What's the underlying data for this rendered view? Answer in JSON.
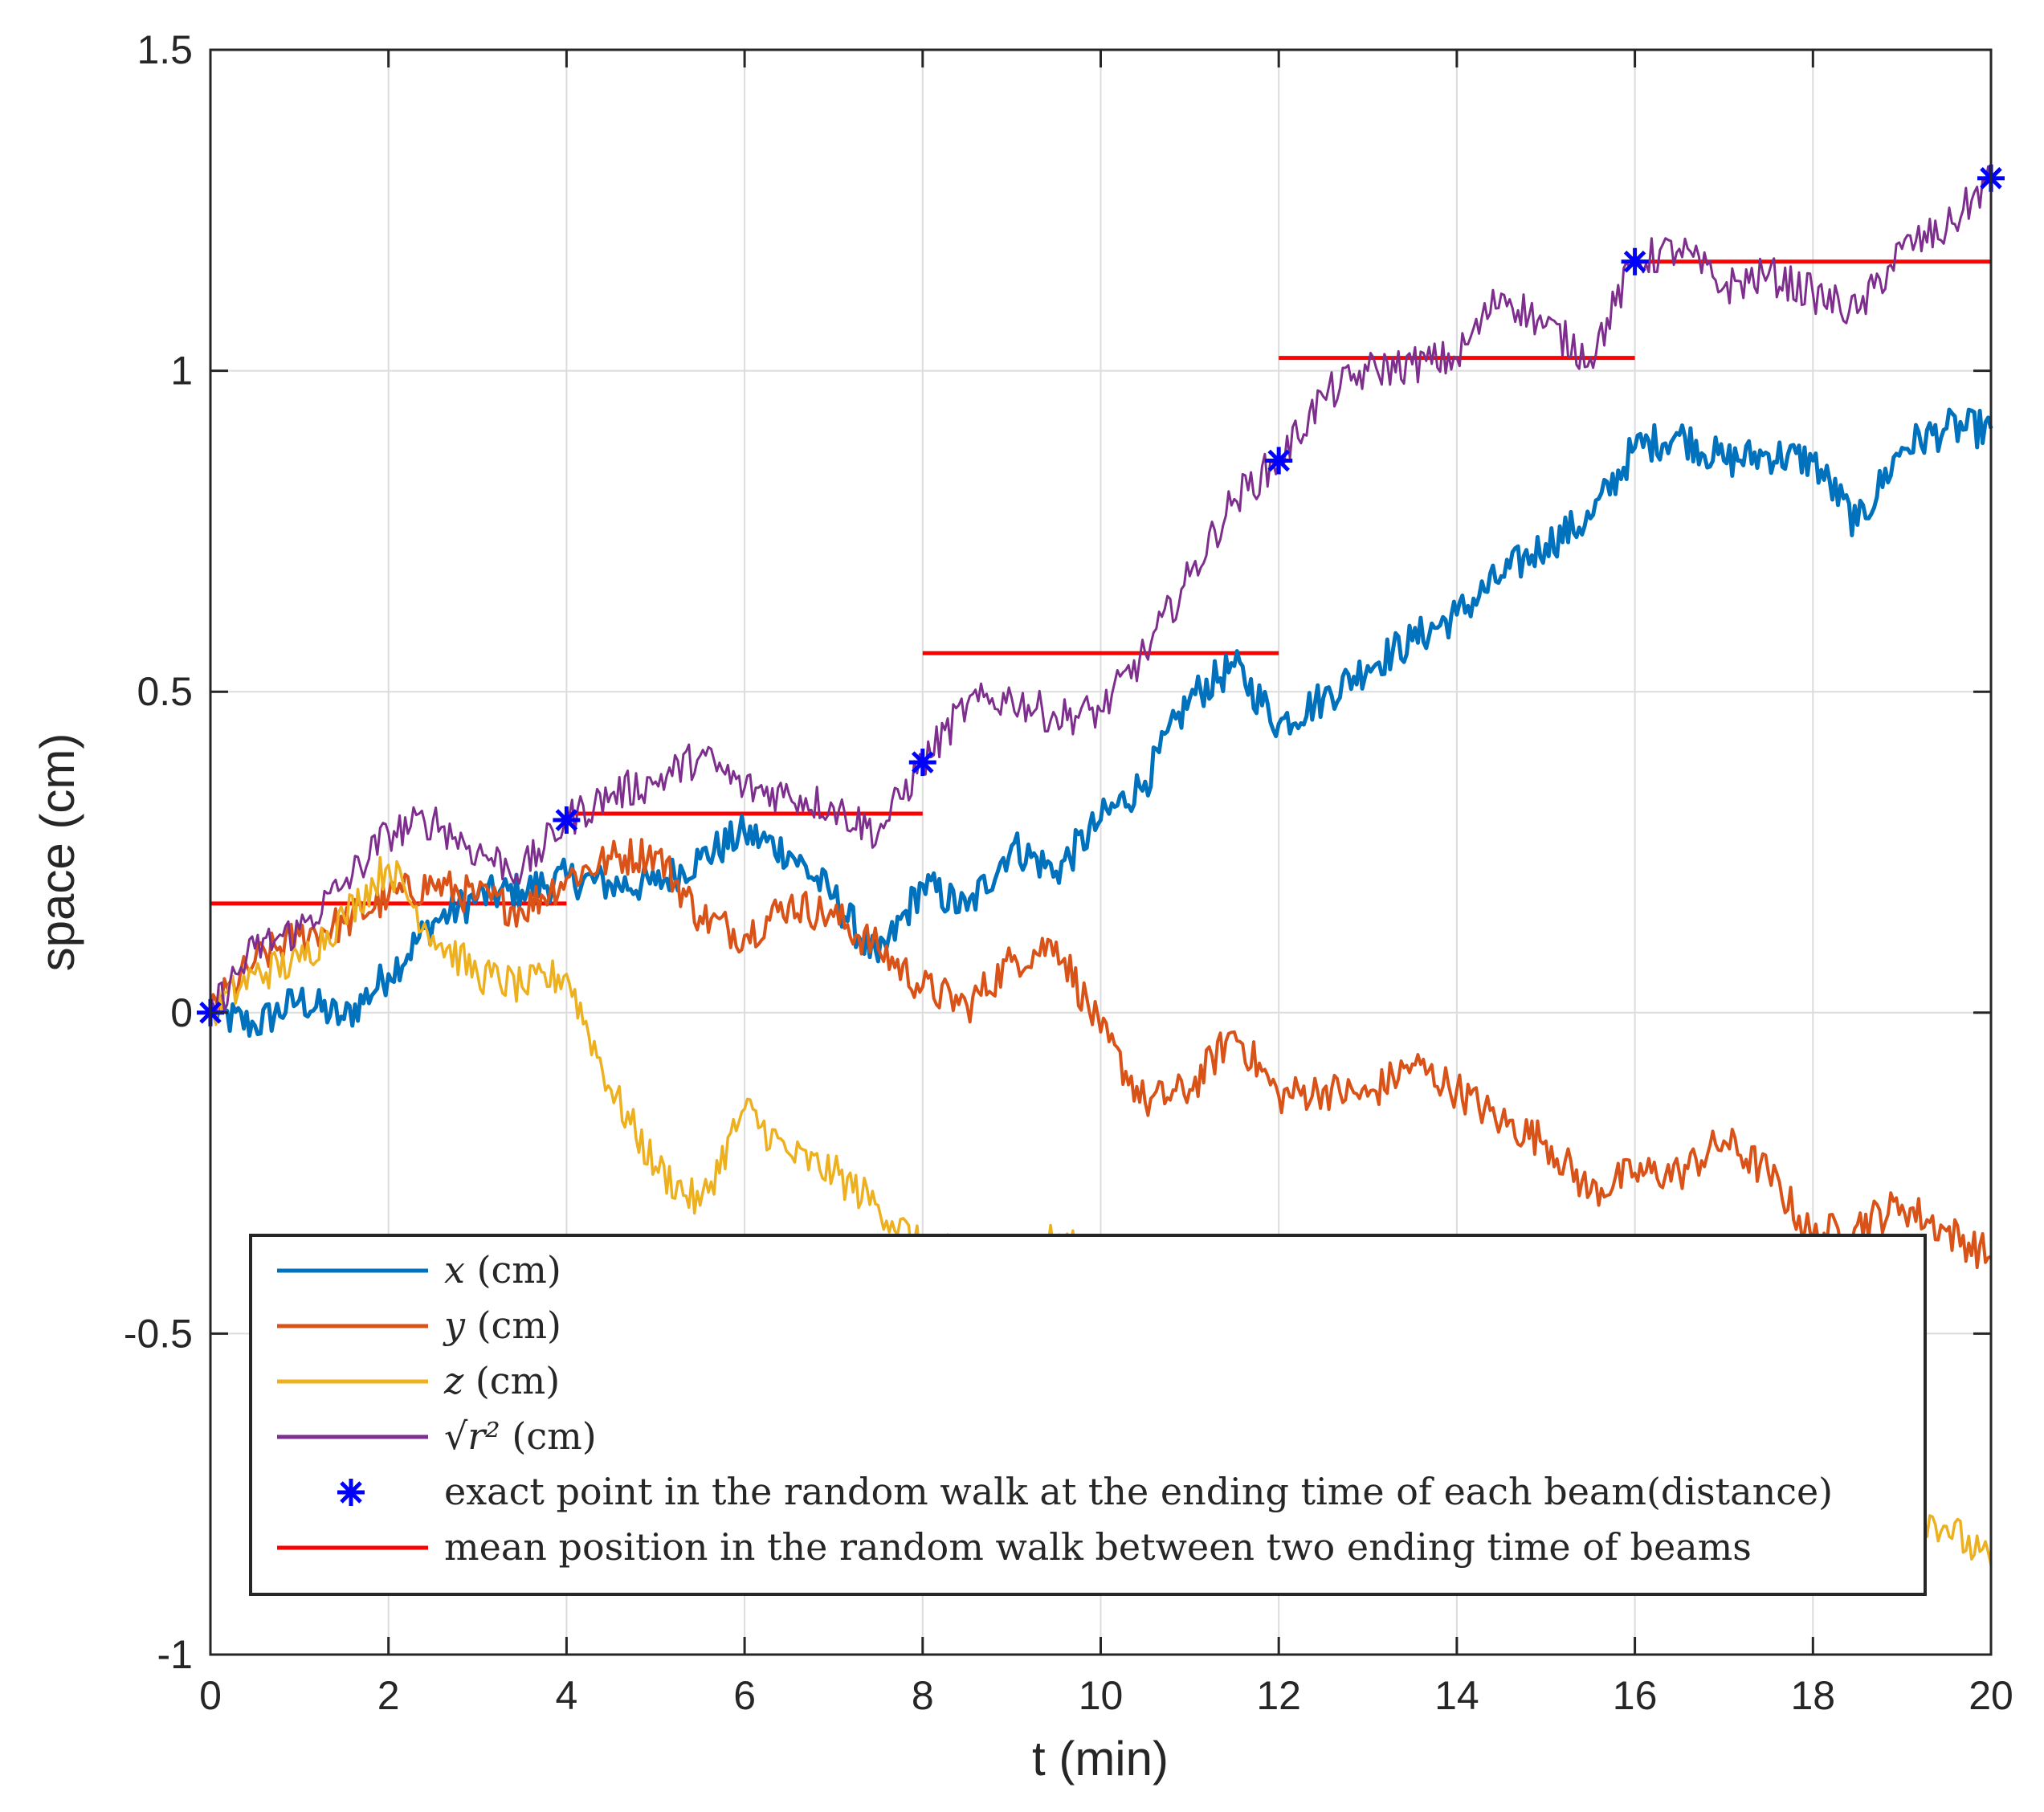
{
  "chart_data": {
    "type": "line",
    "xlabel": "t (min)",
    "ylabel": "space (cm)",
    "xlim": [
      0,
      20
    ],
    "ylim": [
      -1,
      1.5
    ],
    "x_ticks": [
      0,
      2,
      4,
      6,
      8,
      10,
      12,
      14,
      16,
      18,
      20
    ],
    "y_ticks": [
      -1,
      -0.5,
      0,
      0.5,
      1,
      1.5
    ],
    "x_tick_labels": [
      "0",
      "2",
      "4",
      "6",
      "8",
      "10",
      "12",
      "14",
      "16",
      "18",
      "20"
    ],
    "y_tick_labels": [
      "-1",
      "-0.5",
      "0",
      "0.5",
      "1",
      "1.5"
    ],
    "grid": true,
    "legend_position": "bottom",
    "series": [
      {
        "name": "x (cm)",
        "color": "#0072BD",
        "x": [
          0,
          0.5,
          1,
          1.5,
          2,
          2.5,
          3,
          3.5,
          4,
          4.5,
          5,
          5.5,
          6,
          6.5,
          7,
          7.5,
          8,
          8.5,
          9,
          9.5,
          10,
          10.5,
          11,
          11.5,
          12,
          12.5,
          13,
          13.5,
          14,
          14.5,
          15,
          15.5,
          16,
          16.5,
          17,
          17.5,
          18,
          18.5,
          19,
          19.5,
          20
        ],
        "y": [
          0,
          -0.02,
          0.02,
          -0.01,
          0.06,
          0.14,
          0.18,
          0.19,
          0.21,
          0.2,
          0.2,
          0.24,
          0.28,
          0.25,
          0.18,
          0.08,
          0.2,
          0.16,
          0.26,
          0.22,
          0.3,
          0.36,
          0.49,
          0.54,
          0.45,
          0.49,
          0.54,
          0.58,
          0.62,
          0.68,
          0.73,
          0.77,
          0.88,
          0.9,
          0.86,
          0.87,
          0.86,
          0.76,
          0.88,
          0.91,
          0.91
        ]
      },
      {
        "name": "y (cm)",
        "color": "#D95319",
        "x": [
          0,
          0.5,
          1,
          1.5,
          2,
          2.5,
          3,
          3.5,
          4,
          4.5,
          5,
          5.5,
          6,
          6.5,
          7,
          7.5,
          8,
          8.5,
          9,
          9.5,
          10,
          10.5,
          11,
          11.5,
          12,
          12.5,
          13,
          13.5,
          14,
          14.5,
          15,
          15.5,
          16,
          16.5,
          17,
          17.5,
          18,
          18.5,
          19,
          19.5,
          20
        ],
        "y": [
          0,
          0.08,
          0.12,
          0.14,
          0.18,
          0.2,
          0.18,
          0.16,
          0.21,
          0.24,
          0.25,
          0.15,
          0.12,
          0.17,
          0.15,
          0.1,
          0.04,
          0.01,
          0.08,
          0.11,
          -0.03,
          -0.14,
          -0.12,
          -0.03,
          -0.13,
          -0.12,
          -0.13,
          -0.08,
          -0.12,
          -0.17,
          -0.2,
          -0.28,
          -0.25,
          -0.25,
          -0.2,
          -0.25,
          -0.35,
          -0.33,
          -0.3,
          -0.34,
          -0.38
        ]
      },
      {
        "name": "z (cm)",
        "color": "#EDB120",
        "x": [
          0,
          0.5,
          1,
          1.5,
          2,
          2.5,
          3,
          3.5,
          4,
          4.5,
          5,
          5.5,
          6,
          6.5,
          7,
          7.5,
          8,
          8.5,
          9,
          9.5,
          10,
          10.5,
          11,
          11.5,
          12,
          12.5,
          13,
          13.5,
          14,
          14.5,
          15,
          15.5,
          16,
          16.5,
          17,
          17.5,
          18,
          18.5,
          19,
          19.5,
          20
        ],
        "y": [
          0,
          0.06,
          0.08,
          0.15,
          0.23,
          0.12,
          0.06,
          0.04,
          0.06,
          -0.12,
          -0.24,
          -0.3,
          -0.15,
          -0.22,
          -0.25,
          -0.3,
          -0.37,
          -0.38,
          -0.4,
          -0.35,
          -0.4,
          -0.45,
          -0.5,
          -0.52,
          -0.55,
          -0.58,
          -0.6,
          -0.62,
          -0.64,
          -0.66,
          -0.68,
          -0.7,
          -0.72,
          -0.73,
          -0.74,
          -0.75,
          -0.76,
          -0.76,
          -0.77,
          -0.8,
          -0.86
        ]
      },
      {
        "name": "√r² (cm)",
        "color": "#7E2F8E",
        "x": [
          0,
          0.5,
          1,
          1.5,
          2,
          2.5,
          3,
          3.5,
          4,
          4.5,
          5,
          5.5,
          6,
          6.5,
          7,
          7.5,
          8,
          8.5,
          9,
          9.5,
          10,
          10.5,
          11,
          11.5,
          12,
          12.5,
          13,
          13.5,
          14,
          14.5,
          15,
          15.5,
          16,
          16.5,
          17,
          17.5,
          18,
          18.5,
          19,
          19.5,
          20
        ],
        "y": [
          0,
          0.1,
          0.13,
          0.2,
          0.28,
          0.3,
          0.25,
          0.22,
          0.3,
          0.34,
          0.36,
          0.4,
          0.35,
          0.34,
          0.32,
          0.28,
          0.39,
          0.48,
          0.49,
          0.46,
          0.47,
          0.56,
          0.68,
          0.8,
          0.86,
          0.96,
          1.0,
          1.01,
          1.02,
          1.12,
          1.07,
          1.02,
          1.17,
          1.19,
          1.13,
          1.15,
          1.12,
          1.09,
          1.19,
          1.22,
          1.3
        ]
      }
    ],
    "markers": {
      "name": "exact point in the random walk at the ending time of each beam(distance)",
      "color": "#0000FF",
      "symbol": "asterisk",
      "x": [
        0,
        4,
        8,
        12,
        16,
        20
      ],
      "y": [
        0,
        0.3,
        0.39,
        0.86,
        1.17,
        1.3
      ]
    },
    "mean_segments": {
      "name": "mean position in the random walk between two ending time of beams",
      "color": "#FF0000",
      "segments": [
        {
          "x": [
            0,
            4
          ],
          "y": 0.17
        },
        {
          "x": [
            4,
            8
          ],
          "y": 0.31
        },
        {
          "x": [
            8,
            12
          ],
          "y": 0.56
        },
        {
          "x": [
            12,
            16
          ],
          "y": 1.02
        },
        {
          "x": [
            16,
            20
          ],
          "y": 1.17
        }
      ]
    },
    "legend": [
      {
        "math": "x",
        "text": "(cm)",
        "kind": "line",
        "color": "#0072BD"
      },
      {
        "math": "y",
        "text": "(cm)",
        "kind": "line",
        "color": "#D95319"
      },
      {
        "math": "z",
        "text": "(cm)",
        "kind": "line",
        "color": "#EDB120"
      },
      {
        "math": "√r²",
        "text": "(cm)",
        "kind": "line",
        "color": "#7E2F8E"
      },
      {
        "math": "",
        "text": "exact point in the random walk at the ending time of each beam(distance)",
        "kind": "marker",
        "color": "#0000FF"
      },
      {
        "math": "",
        "text": "mean position in the random walk between two ending time of beams",
        "kind": "line",
        "color": "#FF0000"
      }
    ]
  }
}
